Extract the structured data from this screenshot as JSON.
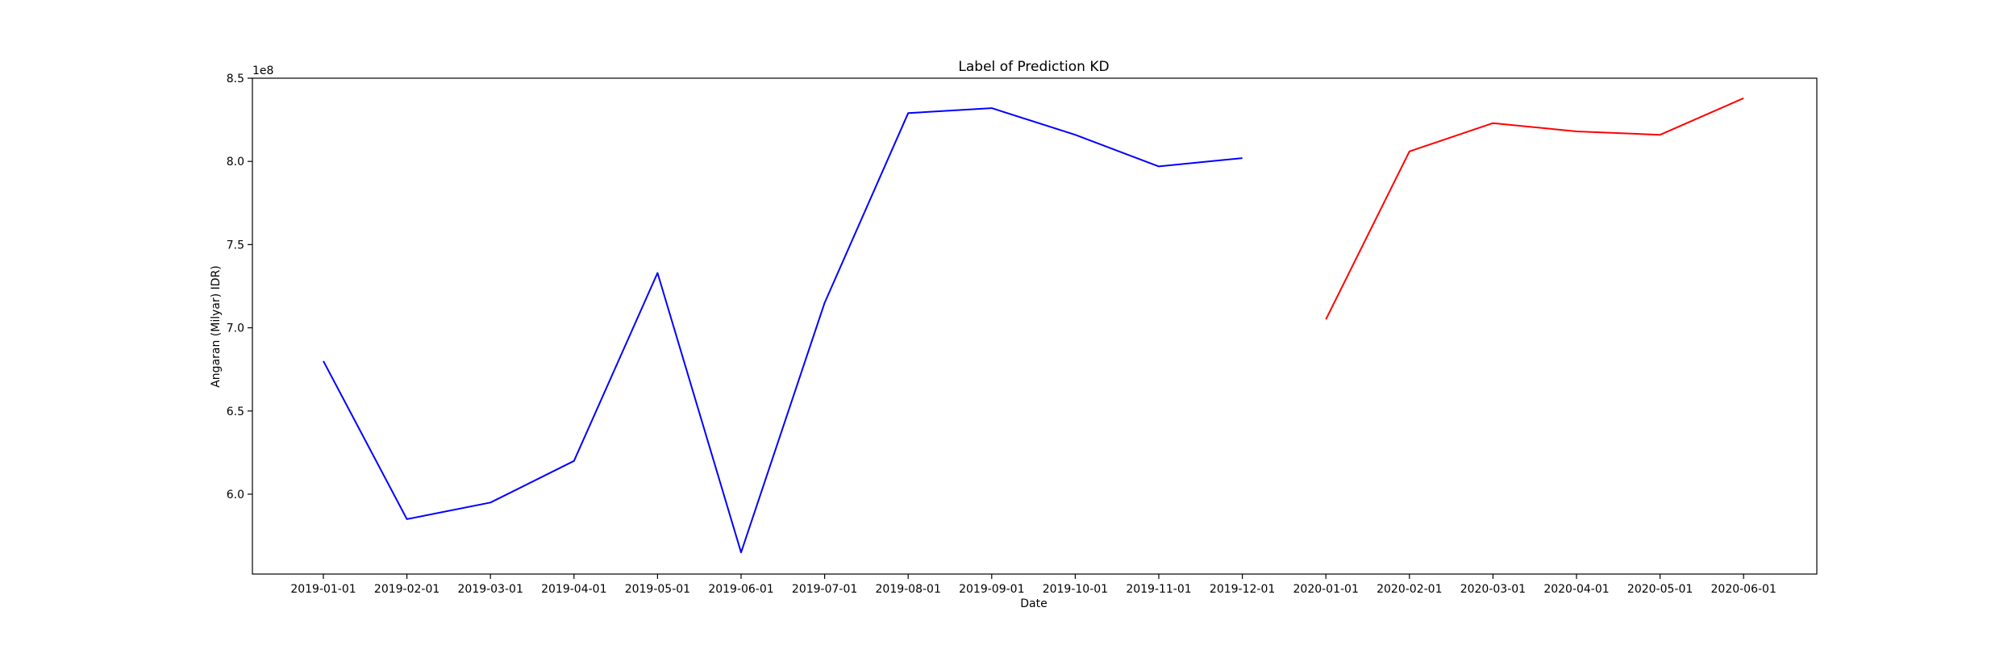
{
  "chart_data": {
    "type": "line",
    "title": "Label of Prediction KD",
    "xlabel": "Date",
    "ylabel": "Angaran (Milyar) IDR)",
    "y_multiplier_label": "1e8",
    "x_tick_labels": [
      "2019-01-01",
      "2019-02-01",
      "2019-03-01",
      "2019-04-01",
      "2019-05-01",
      "2019-06-01",
      "2019-07-01",
      "2019-08-01",
      "2019-09-01",
      "2019-10-01",
      "2019-11-01",
      "2019-12-01",
      "2020-01-01",
      "2020-02-01",
      "2020-03-01",
      "2020-04-01",
      "2020-05-01",
      "2020-06-01"
    ],
    "y_tick_labels": [
      "6.0",
      "6.5",
      "7.0",
      "7.5",
      "8.0",
      "8.5"
    ],
    "y_ticks": [
      600000000,
      650000000,
      700000000,
      750000000,
      800000000,
      850000000
    ],
    "ylim": [
      552000000,
      850000000
    ],
    "grid": false,
    "series": [
      {
        "color": "#0000ff",
        "x": [
          "2019-01-01",
          "2019-02-01",
          "2019-03-01",
          "2019-04-01",
          "2019-05-01",
          "2019-06-01",
          "2019-07-01",
          "2019-08-01",
          "2019-09-01",
          "2019-10-01",
          "2019-11-01",
          "2019-12-01"
        ],
        "values": [
          680000000,
          585000000,
          595000000,
          620000000,
          733000000,
          565000000,
          715000000,
          829000000,
          832000000,
          816000000,
          797000000,
          802000000
        ]
      },
      {
        "color": "#ff0000",
        "x": [
          "2020-01-01",
          "2020-02-01",
          "2020-03-01",
          "2020-04-01",
          "2020-05-01",
          "2020-06-01"
        ],
        "values": [
          705000000,
          806000000,
          823000000,
          818000000,
          816000000,
          838000000
        ]
      }
    ]
  }
}
